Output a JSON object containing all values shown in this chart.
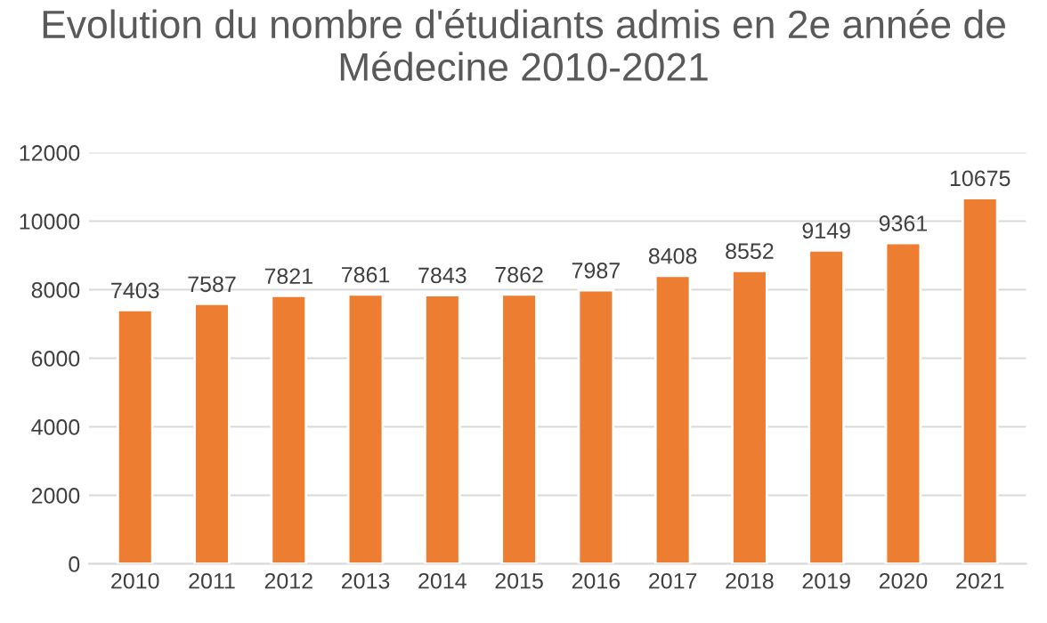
{
  "chart_data": {
    "type": "bar",
    "title": "Evolution du nombre d'étudiants admis en 2e année de Médecine 2010-2021",
    "categories": [
      "2010",
      "2011",
      "2012",
      "2013",
      "2014",
      "2015",
      "2016",
      "2017",
      "2018",
      "2019",
      "2020",
      "2021"
    ],
    "values": [
      7403,
      7587,
      7821,
      7861,
      7843,
      7862,
      7987,
      8408,
      8552,
      9149,
      9361,
      10675
    ],
    "color": "#ed7d31",
    "ylim": [
      0,
      12000
    ],
    "yticks": [
      0,
      2000,
      4000,
      6000,
      8000,
      10000,
      12000
    ],
    "grid": "y",
    "data_labels": true
  }
}
